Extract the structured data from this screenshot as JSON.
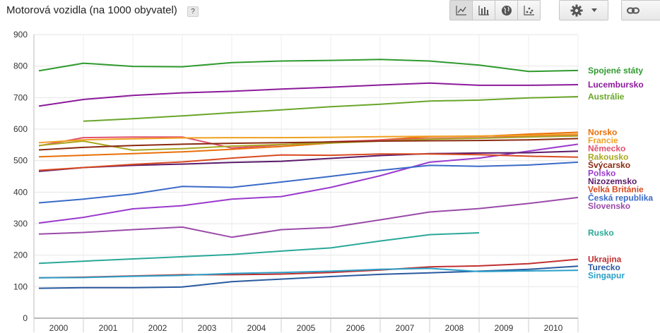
{
  "header": {
    "title": "Motorová vozidla (na 1000 obyvatel)",
    "help_label": "?"
  },
  "toolbar": {
    "buttons": [
      {
        "icon": "line-chart-icon",
        "active": true
      },
      {
        "icon": "bar-chart-icon",
        "active": false
      },
      {
        "icon": "globe-icon",
        "active": false
      },
      {
        "icon": "scatter-plot-icon",
        "active": false
      }
    ],
    "settings_icon": "gear-icon",
    "dropdown_icon": "caret-down-icon",
    "link_icon": "link-icon"
  },
  "chart_data": {
    "type": "line",
    "title": "Motorová vozidla (na 1000 obyvatel)",
    "xlabel": "",
    "ylabel": "",
    "categories": [
      "2000",
      "2001",
      "2002",
      "2003",
      "2004",
      "2005",
      "2006",
      "2007",
      "2008",
      "2009",
      "2010"
    ],
    "ylim": [
      0,
      900
    ],
    "yticks": [
      0,
      100,
      200,
      300,
      400,
      500,
      600,
      700,
      800,
      900
    ],
    "grid": true,
    "legend_position": "right, labels at line ends",
    "series": [
      {
        "name": "Spojené státy",
        "color": "#2e9a2e",
        "points": [
          [
            1999.6,
            785
          ],
          [
            2000.5,
            809
          ],
          [
            2001.5,
            799
          ],
          [
            2002.5,
            798
          ],
          [
            2003.5,
            811
          ],
          [
            2004.5,
            816
          ],
          [
            2005.5,
            818
          ],
          [
            2006.5,
            821
          ],
          [
            2007.5,
            816
          ],
          [
            2008.5,
            803
          ],
          [
            2009.5,
            783
          ],
          [
            2010.5,
            786
          ]
        ]
      },
      {
        "name": "Lucembursko",
        "color": "#8b1a9a",
        "points": [
          [
            1999.6,
            673
          ],
          [
            2000.5,
            694
          ],
          [
            2001.5,
            707
          ],
          [
            2002.5,
            715
          ],
          [
            2003.5,
            720
          ],
          [
            2004.5,
            727
          ],
          [
            2005.5,
            733
          ],
          [
            2006.5,
            740
          ],
          [
            2007.5,
            746
          ],
          [
            2008.5,
            739
          ],
          [
            2009.5,
            739
          ],
          [
            2010.5,
            741
          ]
        ]
      },
      {
        "name": "Austrálie",
        "color": "#6aa52a",
        "points": [
          [
            2000.5,
            625
          ],
          [
            2001.5,
            633
          ],
          [
            2002.5,
            642
          ],
          [
            2003.5,
            652
          ],
          [
            2004.5,
            661
          ],
          [
            2005.5,
            671
          ],
          [
            2006.5,
            679
          ],
          [
            2007.5,
            689
          ],
          [
            2008.5,
            692
          ],
          [
            2009.5,
            699
          ],
          [
            2010.5,
            703
          ]
        ]
      },
      {
        "name": "Norsko",
        "color": "#e8700a",
        "points": [
          [
            1999.6,
            512
          ],
          [
            2000.5,
            517
          ],
          [
            2001.5,
            522
          ],
          [
            2002.5,
            528
          ],
          [
            2003.5,
            536
          ],
          [
            2004.5,
            545
          ],
          [
            2005.5,
            556
          ],
          [
            2006.5,
            566
          ],
          [
            2007.5,
            576
          ],
          [
            2008.5,
            577
          ],
          [
            2009.5,
            584
          ],
          [
            2010.5,
            590
          ]
        ]
      },
      {
        "name": "Německo",
        "color": "#e0506e",
        "points": [
          [
            1999.6,
            547
          ],
          [
            2000.5,
            573
          ],
          [
            2001.5,
            575
          ],
          [
            2002.5,
            575
          ],
          [
            2003.5,
            540
          ],
          [
            2004.5,
            550
          ],
          [
            2005.5,
            560
          ],
          [
            2006.5,
            565
          ],
          [
            2007.5,
            570
          ],
          [
            2008.5,
            572
          ],
          [
            2009.5,
            578
          ],
          [
            2010.5,
            582
          ]
        ]
      },
      {
        "name": "Rakousko",
        "color": "#a8a820",
        "points": [
          [
            1999.6,
            548
          ],
          [
            2000.5,
            562
          ],
          [
            2001.5,
            533
          ],
          [
            2002.5,
            538
          ],
          [
            2003.5,
            546
          ],
          [
            2004.5,
            551
          ],
          [
            2005.5,
            556
          ],
          [
            2006.5,
            562
          ],
          [
            2007.5,
            568
          ],
          [
            2008.5,
            571
          ],
          [
            2009.5,
            575
          ],
          [
            2010.5,
            578
          ]
        ]
      },
      {
        "name": "Francie",
        "color": "#f0a020",
        "points": [
          [
            1999.6,
            557
          ],
          [
            2000.5,
            566
          ],
          [
            2001.5,
            569
          ],
          [
            2002.5,
            572
          ],
          [
            2003.5,
            573
          ],
          [
            2004.5,
            573
          ],
          [
            2005.5,
            574
          ],
          [
            2006.5,
            576
          ],
          [
            2007.5,
            577
          ],
          [
            2008.5,
            578
          ],
          [
            2009.5,
            580
          ],
          [
            2010.5,
            584
          ]
        ]
      },
      {
        "name": "Švýcarsko",
        "color": "#8a2a10",
        "points": [
          [
            1999.6,
            534
          ],
          [
            2000.5,
            542
          ],
          [
            2001.5,
            548
          ],
          [
            2002.5,
            552
          ],
          [
            2003.5,
            555
          ],
          [
            2004.5,
            557
          ],
          [
            2005.5,
            559
          ],
          [
            2006.5,
            562
          ],
          [
            2007.5,
            563
          ],
          [
            2008.5,
            564
          ],
          [
            2009.5,
            566
          ],
          [
            2010.5,
            570
          ]
        ]
      },
      {
        "name": "Polsko",
        "color": "#9a3acc",
        "points": [
          [
            1999.6,
            302
          ],
          [
            2000.5,
            320
          ],
          [
            2001.5,
            347
          ],
          [
            2002.5,
            357
          ],
          [
            2003.5,
            378
          ],
          [
            2004.5,
            386
          ],
          [
            2005.5,
            415
          ],
          [
            2006.5,
            452
          ],
          [
            2007.5,
            495
          ],
          [
            2008.5,
            508
          ],
          [
            2009.5,
            530
          ],
          [
            2010.5,
            552
          ]
        ]
      },
      {
        "name": "Nizozemsko",
        "color": "#5a1a6a",
        "points": [
          [
            1999.6,
            466
          ],
          [
            2000.5,
            478
          ],
          [
            2001.5,
            485
          ],
          [
            2002.5,
            489
          ],
          [
            2003.5,
            494
          ],
          [
            2004.5,
            498
          ],
          [
            2005.5,
            507
          ],
          [
            2006.5,
            516
          ],
          [
            2007.5,
            522
          ],
          [
            2008.5,
            524
          ],
          [
            2009.5,
            525
          ],
          [
            2010.5,
            530
          ]
        ]
      },
      {
        "name": "Velká Británie",
        "color": "#d84a20",
        "points": [
          [
            1999.6,
            469
          ],
          [
            2000.5,
            478
          ],
          [
            2001.5,
            488
          ],
          [
            2002.5,
            496
          ],
          [
            2003.5,
            508
          ],
          [
            2004.5,
            518
          ],
          [
            2005.5,
            517
          ],
          [
            2006.5,
            521
          ],
          [
            2007.5,
            521
          ],
          [
            2008.5,
            519
          ],
          [
            2009.5,
            514
          ],
          [
            2010.5,
            511
          ]
        ]
      },
      {
        "name": "Česká republika",
        "color": "#3a6ac8",
        "points": [
          [
            1999.6,
            366
          ],
          [
            2000.5,
            378
          ],
          [
            2001.5,
            394
          ],
          [
            2002.5,
            418
          ],
          [
            2003.5,
            415
          ],
          [
            2004.5,
            432
          ],
          [
            2005.5,
            450
          ],
          [
            2006.5,
            469
          ],
          [
            2007.5,
            485
          ],
          [
            2008.5,
            482
          ],
          [
            2009.5,
            486
          ],
          [
            2010.5,
            495
          ]
        ]
      },
      {
        "name": "Slovensko",
        "color": "#9a4aa8",
        "points": [
          [
            1999.6,
            267
          ],
          [
            2000.5,
            272
          ],
          [
            2001.5,
            281
          ],
          [
            2002.5,
            289
          ],
          [
            2003.5,
            257
          ],
          [
            2004.5,
            281
          ],
          [
            2005.5,
            288
          ],
          [
            2006.5,
            312
          ],
          [
            2007.5,
            337
          ],
          [
            2008.5,
            348
          ],
          [
            2009.5,
            364
          ],
          [
            2010.5,
            383
          ]
        ]
      },
      {
        "name": "Rusko",
        "color": "#2aa898",
        "points": [
          [
            1999.6,
            174
          ],
          [
            2000.5,
            181
          ],
          [
            2001.5,
            188
          ],
          [
            2002.5,
            195
          ],
          [
            2003.5,
            202
          ],
          [
            2004.5,
            213
          ],
          [
            2005.5,
            223
          ],
          [
            2006.5,
            245
          ],
          [
            2007.5,
            265
          ],
          [
            2008.5,
            271
          ]
        ]
      },
      {
        "name": "Ukrajina",
        "color": "#c03030",
        "points": [
          [
            1999.6,
            128
          ],
          [
            2000.5,
            130
          ],
          [
            2001.5,
            134
          ],
          [
            2002.5,
            138
          ],
          [
            2003.5,
            138
          ],
          [
            2004.5,
            140
          ],
          [
            2005.5,
            145
          ],
          [
            2006.5,
            153
          ],
          [
            2007.5,
            163
          ],
          [
            2008.5,
            166
          ],
          [
            2009.5,
            173
          ],
          [
            2010.5,
            187
          ]
        ]
      },
      {
        "name": "Turecko",
        "color": "#2a5aa0",
        "points": [
          [
            1999.6,
            95
          ],
          [
            2000.5,
            97
          ],
          [
            2001.5,
            97
          ],
          [
            2002.5,
            99
          ],
          [
            2003.5,
            116
          ],
          [
            2004.5,
            124
          ],
          [
            2005.5,
            132
          ],
          [
            2006.5,
            139
          ],
          [
            2007.5,
            144
          ],
          [
            2008.5,
            149
          ],
          [
            2009.5,
            155
          ],
          [
            2010.5,
            165
          ]
        ]
      },
      {
        "name": "Singapur",
        "color": "#2aa0c8",
        "points": [
          [
            1999.6,
            128
          ],
          [
            2000.5,
            129
          ],
          [
            2001.5,
            133
          ],
          [
            2002.5,
            136
          ],
          [
            2003.5,
            142
          ],
          [
            2004.5,
            145
          ],
          [
            2005.5,
            149
          ],
          [
            2006.5,
            155
          ],
          [
            2007.5,
            158
          ],
          [
            2008.5,
            148
          ],
          [
            2009.5,
            150
          ],
          [
            2010.5,
            152
          ]
        ]
      }
    ]
  }
}
